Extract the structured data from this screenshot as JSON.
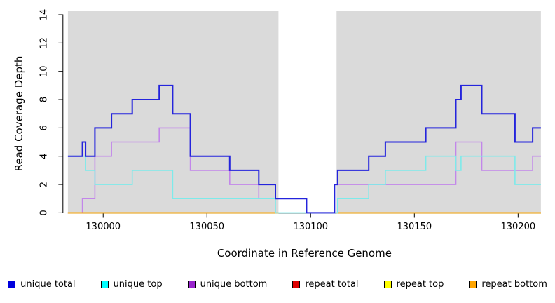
{
  "chart_data": {
    "type": "step-line",
    "title": "",
    "xlabel": "Coordinate in Reference Genome",
    "ylabel": "Read Coverage Depth",
    "xlim": [
      129983,
      130211
    ],
    "ylim": [
      0,
      14.3
    ],
    "x_ticks": [
      130000,
      130050,
      130100,
      130150,
      130200
    ],
    "y_ticks": [
      0,
      2,
      4,
      6,
      8,
      10,
      12,
      14
    ],
    "grid": false,
    "plot_bg_color": "#DADADA",
    "bg_regions": [
      [
        129983,
        130084.5
      ],
      [
        130112.5,
        130211
      ]
    ],
    "no_data_region": [
      130084.5,
      130112.5
    ],
    "series": [
      {
        "name": "unique bottom",
        "color": "#C286EA",
        "width": 1.6,
        "segments": [
          [
            [
              129983,
              0
            ],
            [
              129990,
              1
            ],
            [
              129996,
              4
            ],
            [
              130004,
              5
            ],
            [
              130027,
              6
            ],
            [
              130042,
              3
            ],
            [
              130061,
              2
            ],
            [
              130075,
              1
            ],
            [
              130098,
              0
            ],
            [
              130111.5,
              2
            ],
            [
              130170,
              5
            ],
            [
              130182.5,
              3
            ],
            [
              130207,
              4
            ],
            [
              130211,
              4
            ]
          ]
        ]
      },
      {
        "name": "repeat total",
        "color": "#DD0000",
        "width": 1.6,
        "segments": [
          [
            [
              129983,
              0
            ],
            [
              130084.5,
              0
            ]
          ],
          [
            [
              130112.5,
              0
            ],
            [
              130211,
              0
            ]
          ]
        ]
      },
      {
        "name": "repeat top",
        "color": "#FFFF00",
        "width": 1.6,
        "segments": [
          [
            [
              129983,
              0
            ],
            [
              130084.5,
              0
            ]
          ],
          [
            [
              130112.5,
              0
            ],
            [
              130211,
              0
            ]
          ]
        ]
      },
      {
        "name": "repeat bottom",
        "color": "#FFA500",
        "width": 1.8,
        "segments": [
          [
            [
              129983,
              0
            ],
            [
              130084.5,
              0
            ]
          ],
          [
            [
              130112.5,
              0
            ],
            [
              130211,
              0
            ]
          ]
        ]
      },
      {
        "name": "unique top",
        "color": "#7DEAEA",
        "width": 1.6,
        "segments": [
          [
            [
              129983,
              4
            ],
            [
              129991.5,
              3
            ],
            [
              129996,
              2
            ],
            [
              130014,
              3
            ],
            [
              130033.5,
              1
            ],
            [
              130083,
              0
            ],
            [
              130113,
              1
            ],
            [
              130128,
              2
            ],
            [
              130136,
              3
            ],
            [
              130155.5,
              4
            ],
            [
              130170,
              3
            ],
            [
              130172.5,
              4
            ],
            [
              130198.5,
              2
            ],
            [
              130211,
              2
            ]
          ]
        ]
      },
      {
        "name": "unique total",
        "color": "#2424DC",
        "width": 2.0,
        "segments": [
          [
            [
              129983,
              4
            ],
            [
              129990,
              5
            ],
            [
              129991.5,
              4
            ],
            [
              129996,
              6
            ],
            [
              130004,
              7
            ],
            [
              130014,
              8
            ],
            [
              130027,
              9
            ],
            [
              130033.5,
              7
            ],
            [
              130042,
              4
            ],
            [
              130061,
              3
            ],
            [
              130075,
              2
            ],
            [
              130083,
              1
            ],
            [
              130098,
              0
            ],
            [
              130111.5,
              2
            ],
            [
              130113,
              3
            ],
            [
              130128,
              4
            ],
            [
              130136,
              5
            ],
            [
              130155.5,
              6
            ],
            [
              130170,
              8
            ],
            [
              130172.5,
              9
            ],
            [
              130182.5,
              7
            ],
            [
              130198.5,
              5
            ],
            [
              130207,
              6
            ],
            [
              130211,
              6
            ]
          ]
        ]
      }
    ]
  },
  "legend": {
    "items": [
      {
        "label": "unique total",
        "color": "#0000DD"
      },
      {
        "label": "unique top",
        "color": "#00FFFF"
      },
      {
        "label": "unique bottom",
        "color": "#9925CD"
      },
      {
        "label": "repeat total",
        "color": "#DD0000"
      },
      {
        "label": "repeat top",
        "color": "#FFFF00"
      },
      {
        "label": "repeat bottom",
        "color": "#FFA500"
      }
    ]
  }
}
